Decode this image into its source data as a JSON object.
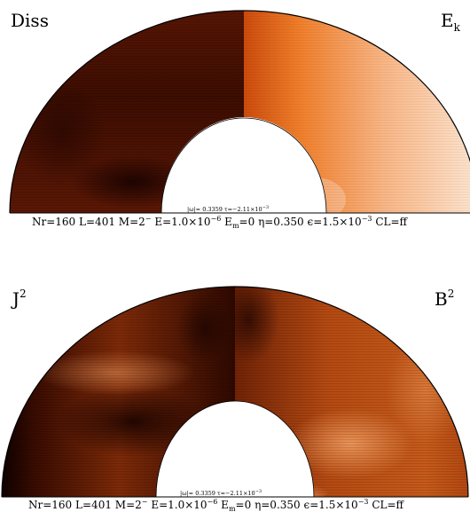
{
  "panels": [
    {
      "left_label": "Diss",
      "right_label": "E",
      "right_label_sub": "k",
      "params_small": "|ω|= 0.3359 τ=−2.11×10",
      "params_small_exp": "−3",
      "params": {
        "nr": "Nr=160",
        "l": "L=401",
        "m": "M=2",
        "m_sup": "−",
        "e": "E=1.0×10",
        "e_exp": "−6",
        "em": "E",
        "em_sub": "m",
        "em_val": "=0",
        "eta": "η=0.350",
        "eps": "ϵ=1.5×10",
        "eps_exp": "−3",
        "cl": "CL=ff"
      }
    },
    {
      "left_label": "J",
      "left_label_sup": "2",
      "right_label": "B",
      "right_label_sup": "2",
      "params_small": "|ω|= 0.3359 τ=−2.11×10",
      "params_small_exp": "−3",
      "params": {
        "nr": "Nr=160",
        "l": "L=401",
        "m": "M=2",
        "m_sup": "−",
        "e": "E=1.0×10",
        "e_exp": "−6",
        "em": "E",
        "em_sub": "m",
        "em_val": "=0",
        "eta": "η=0.350",
        "eps": "ϵ=1.5×10",
        "eps_exp": "−3",
        "cl": "CL=ff"
      }
    }
  ],
  "colors": {
    "dark": "#1a0000",
    "mid": "#7a2306",
    "orange": "#e06010",
    "light": "#fcdcc0"
  }
}
